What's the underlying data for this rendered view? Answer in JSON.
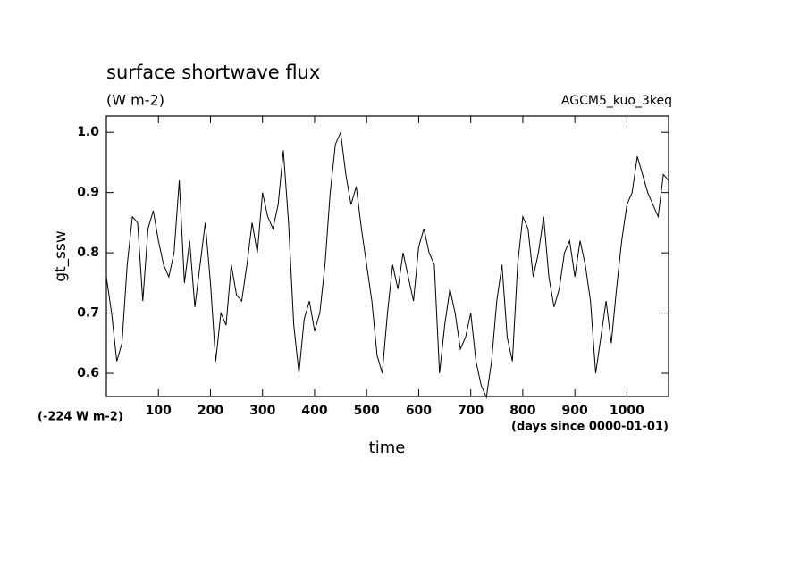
{
  "chart_data": {
    "type": "line",
    "title": "surface shortwave flux",
    "subtitle": "(W m-2)",
    "experiment": "AGCM5_kuo_3keq",
    "y_label": "gt_ssw",
    "x_label": "time",
    "offset_note": "(-224 W m-2)",
    "x_unit_note": "(days since 0000-01-01)",
    "x": [
      0,
      10,
      20,
      30,
      40,
      50,
      60,
      70,
      80,
      90,
      100,
      110,
      120,
      130,
      140,
      150,
      160,
      170,
      180,
      190,
      200,
      210,
      220,
      230,
      240,
      250,
      260,
      270,
      280,
      290,
      300,
      310,
      320,
      330,
      340,
      350,
      360,
      370,
      380,
      390,
      400,
      410,
      420,
      430,
      440,
      450,
      460,
      470,
      480,
      490,
      500,
      510,
      520,
      530,
      540,
      550,
      560,
      570,
      580,
      590,
      600,
      610,
      620,
      630,
      640,
      650,
      660,
      670,
      680,
      690,
      700,
      710,
      720,
      730,
      740,
      750,
      760,
      770,
      780,
      790,
      800,
      810,
      820,
      830,
      840,
      850,
      860,
      870,
      880,
      890,
      900,
      910,
      920,
      930,
      940,
      950,
      960,
      970,
      980,
      990,
      1000,
      1010,
      1020,
      1030,
      1040,
      1050,
      1060,
      1070,
      1080
    ],
    "series": [
      {
        "name": "gt_ssw",
        "color": "#000000",
        "values": [
          0.76,
          0.7,
          0.62,
          0.65,
          0.78,
          0.86,
          0.85,
          0.72,
          0.84,
          0.87,
          0.82,
          0.78,
          0.76,
          0.8,
          0.92,
          0.75,
          0.82,
          0.71,
          0.78,
          0.85,
          0.75,
          0.62,
          0.7,
          0.68,
          0.78,
          0.73,
          0.72,
          0.78,
          0.85,
          0.8,
          0.9,
          0.86,
          0.84,
          0.88,
          0.97,
          0.85,
          0.68,
          0.6,
          0.69,
          0.72,
          0.67,
          0.7,
          0.78,
          0.9,
          0.98,
          1.0,
          0.93,
          0.88,
          0.91,
          0.84,
          0.78,
          0.72,
          0.63,
          0.6,
          0.7,
          0.78,
          0.74,
          0.8,
          0.76,
          0.72,
          0.81,
          0.84,
          0.8,
          0.78,
          0.6,
          0.68,
          0.74,
          0.7,
          0.64,
          0.66,
          0.7,
          0.62,
          0.58,
          0.56,
          0.62,
          0.72,
          0.78,
          0.66,
          0.62,
          0.78,
          0.86,
          0.84,
          0.76,
          0.8,
          0.86,
          0.76,
          0.71,
          0.74,
          0.8,
          0.82,
          0.76,
          0.82,
          0.78,
          0.72,
          0.6,
          0.66,
          0.72,
          0.65,
          0.74,
          0.82,
          0.88,
          0.9,
          0.96,
          0.93,
          0.9,
          0.88,
          0.86,
          0.93,
          0.92
        ]
      }
    ],
    "xlim": [
      0,
      1080
    ],
    "ylim": [
      0.5615,
      1.027
    ],
    "xticks": [
      100,
      200,
      300,
      400,
      500,
      600,
      700,
      800,
      900,
      1000
    ],
    "yticks": [
      0.6,
      0.7,
      0.8,
      0.9,
      {
        "value": 1,
        "label": "1.0"
      }
    ]
  }
}
